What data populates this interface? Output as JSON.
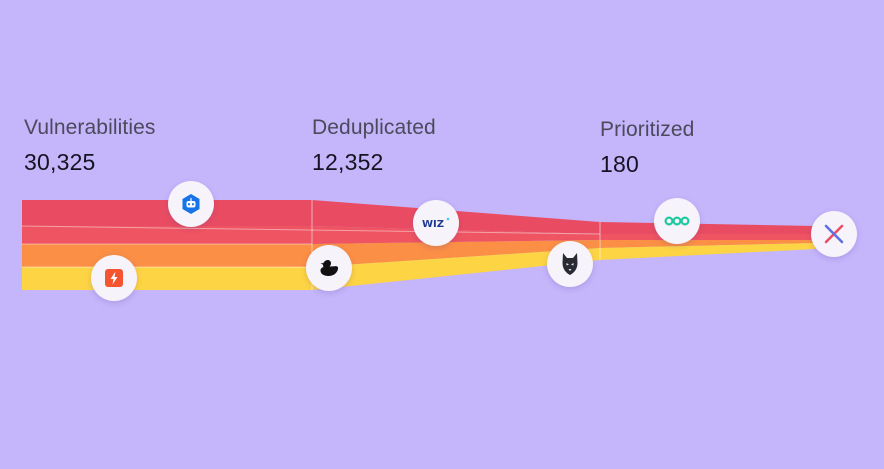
{
  "stages": [
    {
      "label": "Vulnerabilities",
      "value": "30,325"
    },
    {
      "label": "Deduplicated",
      "value": "12,352"
    },
    {
      "label": "Prioritized",
      "value": "180"
    }
  ],
  "colors": {
    "background": "#c5b5fb",
    "red": "#e94c62",
    "orange": "#fb8f45",
    "yellow": "#fdd444"
  },
  "badges": [
    {
      "name": "robot-icon"
    },
    {
      "name": "lightning-icon"
    },
    {
      "name": "wiz-icon",
      "text": "WIZ"
    },
    {
      "name": "duck-icon"
    },
    {
      "name": "wolf-icon"
    },
    {
      "name": "rings-icon"
    },
    {
      "name": "cross-icon"
    }
  ]
}
